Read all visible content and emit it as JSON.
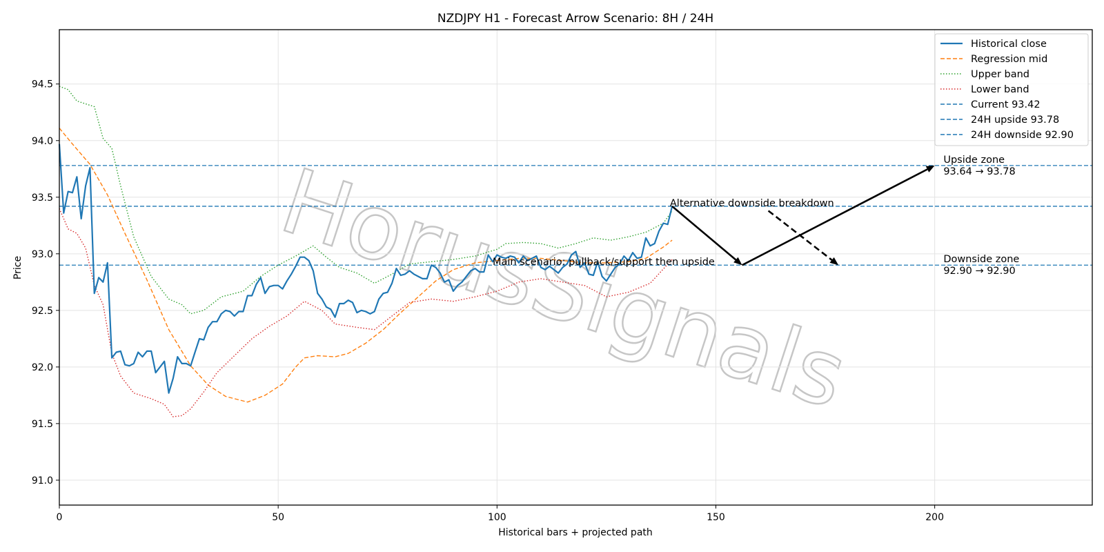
{
  "chart_data": {
    "type": "line",
    "title": "NZDJPY H1 - Forecast Arrow Scenario: 8H / 24H",
    "xlabel": "Historical bars + projected path",
    "ylabel": "Price",
    "xlim": [
      0,
      236
    ],
    "ylim": [
      90.78,
      94.98
    ],
    "xticks": [
      0,
      50,
      100,
      150,
      200
    ],
    "yticks": [
      91.0,
      91.5,
      92.0,
      92.5,
      93.0,
      93.5,
      94.0,
      94.5
    ],
    "xtick_labels": [
      "0",
      "50",
      "100",
      "150",
      "200"
    ],
    "ytick_labels": [
      "91.0",
      "91.5",
      "92.0",
      "92.5",
      "93.0",
      "93.5",
      "94.0",
      "94.5"
    ],
    "grid": true,
    "legend_position": "top-right",
    "watermark": "HorusSignals",
    "series": [
      {
        "name": "Historical close",
        "style": "solid",
        "color": "#1f77b4",
        "points": [
          [
            0,
            93.97
          ],
          [
            1,
            93.36
          ],
          [
            2,
            93.55
          ],
          [
            3,
            93.54
          ],
          [
            4,
            93.68
          ],
          [
            5,
            93.31
          ],
          [
            6,
            93.6
          ],
          [
            7,
            93.76
          ],
          [
            8,
            92.65
          ],
          [
            9,
            92.79
          ],
          [
            10,
            92.75
          ],
          [
            11,
            92.92
          ],
          [
            12,
            92.08
          ],
          [
            13,
            92.13
          ],
          [
            14,
            92.14
          ],
          [
            15,
            92.02
          ],
          [
            16,
            92.01
          ],
          [
            17,
            92.03
          ],
          [
            18,
            92.13
          ],
          [
            19,
            92.09
          ],
          [
            20,
            92.14
          ],
          [
            21,
            92.14
          ],
          [
            22,
            91.95
          ],
          [
            23,
            92.0
          ],
          [
            24,
            92.05
          ],
          [
            25,
            91.77
          ],
          [
            26,
            91.9
          ],
          [
            27,
            92.09
          ],
          [
            28,
            92.03
          ],
          [
            29,
            92.03
          ],
          [
            30,
            92.01
          ],
          [
            31,
            92.13
          ],
          [
            32,
            92.25
          ],
          [
            33,
            92.24
          ],
          [
            34,
            92.35
          ],
          [
            35,
            92.4
          ],
          [
            36,
            92.4
          ],
          [
            37,
            92.47
          ],
          [
            38,
            92.5
          ],
          [
            39,
            92.49
          ],
          [
            40,
            92.45
          ],
          [
            41,
            92.49
          ],
          [
            42,
            92.49
          ],
          [
            43,
            92.63
          ],
          [
            44,
            92.63
          ],
          [
            45,
            92.73
          ],
          [
            46,
            92.79
          ],
          [
            47,
            92.65
          ],
          [
            48,
            92.71
          ],
          [
            49,
            92.72
          ],
          [
            50,
            92.72
          ],
          [
            51,
            92.69
          ],
          [
            52,
            92.76
          ],
          [
            53,
            92.82
          ],
          [
            54,
            92.89
          ],
          [
            55,
            92.97
          ],
          [
            56,
            92.97
          ],
          [
            57,
            92.94
          ],
          [
            58,
            92.85
          ],
          [
            59,
            92.65
          ],
          [
            60,
            92.6
          ],
          [
            61,
            92.53
          ],
          [
            62,
            92.51
          ],
          [
            63,
            92.44
          ],
          [
            64,
            92.56
          ],
          [
            65,
            92.56
          ],
          [
            66,
            92.59
          ],
          [
            67,
            92.57
          ],
          [
            68,
            92.48
          ],
          [
            69,
            92.5
          ],
          [
            70,
            92.49
          ],
          [
            71,
            92.47
          ],
          [
            72,
            92.49
          ],
          [
            73,
            92.6
          ],
          [
            74,
            92.65
          ],
          [
            75,
            92.66
          ],
          [
            76,
            92.74
          ],
          [
            77,
            92.87
          ],
          [
            78,
            92.81
          ],
          [
            79,
            92.82
          ],
          [
            80,
            92.85
          ],
          [
            81,
            92.82
          ],
          [
            82,
            92.8
          ],
          [
            83,
            92.78
          ],
          [
            84,
            92.78
          ],
          [
            85,
            92.9
          ],
          [
            86,
            92.88
          ],
          [
            87,
            92.83
          ],
          [
            88,
            92.75
          ],
          [
            89,
            92.77
          ],
          [
            90,
            92.67
          ],
          [
            91,
            92.72
          ],
          [
            92,
            92.75
          ],
          [
            93,
            92.8
          ],
          [
            94,
            92.85
          ],
          [
            95,
            92.87
          ],
          [
            96,
            92.84
          ],
          [
            97,
            92.84
          ],
          [
            98,
            92.99
          ],
          [
            99,
            92.93
          ],
          [
            100,
            92.99
          ],
          [
            101,
            92.97
          ],
          [
            102,
            92.96
          ],
          [
            103,
            92.98
          ],
          [
            104,
            92.97
          ],
          [
            105,
            92.92
          ],
          [
            106,
            92.98
          ],
          [
            107,
            92.94
          ],
          [
            108,
            92.96
          ],
          [
            109,
            92.98
          ],
          [
            110,
            92.88
          ],
          [
            111,
            92.86
          ],
          [
            112,
            92.89
          ],
          [
            113,
            92.86
          ],
          [
            114,
            92.83
          ],
          [
            115,
            92.88
          ],
          [
            116,
            92.91
          ],
          [
            117,
            92.99
          ],
          [
            118,
            93.02
          ],
          [
            119,
            92.88
          ],
          [
            120,
            92.92
          ],
          [
            121,
            92.82
          ],
          [
            122,
            92.81
          ],
          [
            123,
            92.93
          ],
          [
            124,
            92.8
          ],
          [
            125,
            92.76
          ],
          [
            126,
            92.82
          ],
          [
            127,
            92.88
          ],
          [
            128,
            92.91
          ],
          [
            129,
            92.98
          ],
          [
            130,
            92.94
          ],
          [
            131,
            93.01
          ],
          [
            132,
            92.96
          ],
          [
            133,
            92.97
          ],
          [
            134,
            93.14
          ],
          [
            135,
            93.07
          ],
          [
            136,
            93.09
          ],
          [
            137,
            93.2
          ],
          [
            138,
            93.27
          ],
          [
            139,
            93.26
          ],
          [
            140,
            93.42
          ]
        ]
      },
      {
        "name": "Regression mid",
        "style": "dashed",
        "color": "#ff7f0e",
        "points": [
          [
            0,
            94.11
          ],
          [
            3,
            93.97
          ],
          [
            7,
            93.79
          ],
          [
            11,
            93.52
          ],
          [
            15,
            93.18
          ],
          [
            20,
            92.77
          ],
          [
            25,
            92.33
          ],
          [
            30,
            92.01
          ],
          [
            34,
            91.84
          ],
          [
            38,
            91.74
          ],
          [
            43,
            91.69
          ],
          [
            47,
            91.75
          ],
          [
            51,
            91.85
          ],
          [
            54,
            92.0
          ],
          [
            56,
            92.08
          ],
          [
            59,
            92.1
          ],
          [
            63,
            92.09
          ],
          [
            66,
            92.12
          ],
          [
            70,
            92.21
          ],
          [
            74,
            92.33
          ],
          [
            78,
            92.48
          ],
          [
            82,
            92.62
          ],
          [
            86,
            92.76
          ],
          [
            90,
            92.86
          ],
          [
            95,
            92.92
          ],
          [
            100,
            92.94
          ],
          [
            105,
            92.96
          ],
          [
            110,
            92.96
          ],
          [
            115,
            92.94
          ],
          [
            120,
            92.92
          ],
          [
            125,
            92.92
          ],
          [
            130,
            92.93
          ],
          [
            134,
            92.96
          ],
          [
            138,
            93.06
          ],
          [
            140,
            93.12
          ]
        ]
      },
      {
        "name": "Upper band",
        "style": "dotted",
        "color": "#2ca02c",
        "points": [
          [
            0,
            94.48
          ],
          [
            2,
            94.45
          ],
          [
            4,
            94.35
          ],
          [
            8,
            94.3
          ],
          [
            10,
            94.02
          ],
          [
            12,
            93.93
          ],
          [
            14,
            93.6
          ],
          [
            17,
            93.15
          ],
          [
            21,
            92.8
          ],
          [
            25,
            92.6
          ],
          [
            28,
            92.55
          ],
          [
            30,
            92.47
          ],
          [
            33,
            92.5
          ],
          [
            37,
            92.62
          ],
          [
            42,
            92.67
          ],
          [
            46,
            92.8
          ],
          [
            50,
            92.9
          ],
          [
            54,
            92.98
          ],
          [
            58,
            93.07
          ],
          [
            61,
            92.97
          ],
          [
            64,
            92.88
          ],
          [
            68,
            92.83
          ],
          [
            72,
            92.74
          ],
          [
            76,
            92.82
          ],
          [
            80,
            92.91
          ],
          [
            85,
            92.93
          ],
          [
            90,
            92.95
          ],
          [
            95,
            92.98
          ],
          [
            100,
            93.04
          ],
          [
            102,
            93.09
          ],
          [
            106,
            93.1
          ],
          [
            110,
            93.09
          ],
          [
            114,
            93.05
          ],
          [
            118,
            93.09
          ],
          [
            122,
            93.14
          ],
          [
            126,
            93.12
          ],
          [
            130,
            93.15
          ],
          [
            134,
            93.19
          ],
          [
            138,
            93.27
          ],
          [
            140,
            93.38
          ]
        ]
      },
      {
        "name": "Lower band",
        "style": "dotted",
        "color": "#d62728",
        "points": [
          [
            0,
            93.4
          ],
          [
            2,
            93.22
          ],
          [
            4,
            93.18
          ],
          [
            6,
            93.05
          ],
          [
            8,
            92.72
          ],
          [
            10,
            92.55
          ],
          [
            12,
            92.12
          ],
          [
            14,
            91.92
          ],
          [
            17,
            91.77
          ],
          [
            21,
            91.72
          ],
          [
            24,
            91.67
          ],
          [
            26,
            91.56
          ],
          [
            28,
            91.57
          ],
          [
            30,
            91.63
          ],
          [
            33,
            91.78
          ],
          [
            36,
            91.95
          ],
          [
            40,
            92.1
          ],
          [
            44,
            92.25
          ],
          [
            48,
            92.36
          ],
          [
            52,
            92.45
          ],
          [
            56,
            92.58
          ],
          [
            60,
            92.5
          ],
          [
            63,
            92.38
          ],
          [
            68,
            92.35
          ],
          [
            72,
            92.33
          ],
          [
            76,
            92.45
          ],
          [
            80,
            92.57
          ],
          [
            85,
            92.6
          ],
          [
            90,
            92.58
          ],
          [
            95,
            92.62
          ],
          [
            100,
            92.67
          ],
          [
            105,
            92.75
          ],
          [
            110,
            92.78
          ],
          [
            115,
            92.75
          ],
          [
            120,
            92.72
          ],
          [
            125,
            92.62
          ],
          [
            130,
            92.66
          ],
          [
            135,
            92.74
          ],
          [
            140,
            92.95
          ]
        ]
      }
    ],
    "hlines": [
      {
        "name": "Current 93.42",
        "y": 93.42,
        "color": "#1f77b4",
        "style": "dashed"
      },
      {
        "name": "24H upside 93.78",
        "y": 93.78,
        "color": "#1f77b4",
        "style": "dashed"
      },
      {
        "name": "24H downside 92.90",
        "y": 92.9,
        "color": "#1f77b4",
        "style": "dashed"
      }
    ],
    "arrows": [
      {
        "from": [
          140,
          93.42
        ],
        "to": [
          156,
          92.9
        ],
        "style": "solid"
      },
      {
        "from": [
          156,
          92.9
        ],
        "to": [
          200,
          93.78
        ],
        "style": "solid"
      },
      {
        "from": [
          162,
          93.38
        ],
        "to": [
          178,
          92.9
        ],
        "style": "dashed"
      }
    ],
    "annotations": [
      {
        "text": "Main scenario: pullback/support then upside",
        "x": 99,
        "y": 92.9
      },
      {
        "text": "Alternative downside breakdown",
        "x": 139.5,
        "y": 93.42
      },
      {
        "text": "Upside zone",
        "x": 202,
        "y": 93.78
      },
      {
        "text": "93.64 → 93.78",
        "x": 202,
        "y": 93.78
      },
      {
        "text": "Downside zone",
        "x": 202,
        "y": 92.9
      },
      {
        "text": "92.90 → 92.90",
        "x": 202,
        "y": 92.9
      }
    ]
  }
}
